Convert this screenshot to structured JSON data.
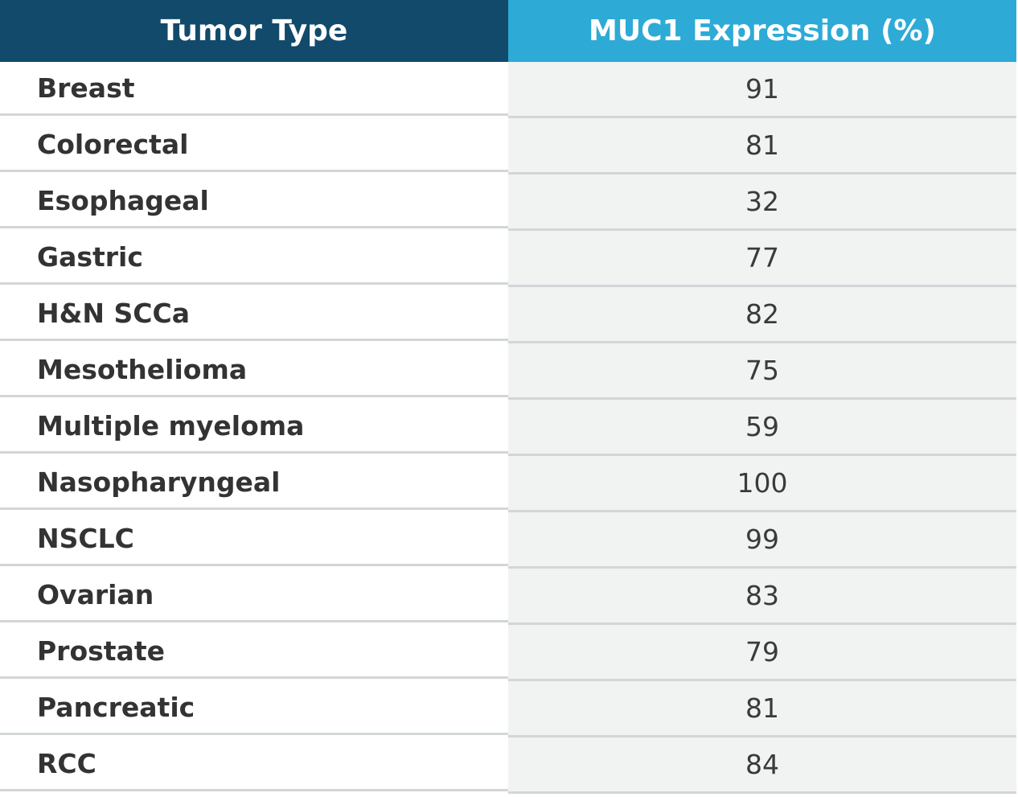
{
  "table": {
    "header": [
      "Tumor Type",
      "MUC1 Expression (%)"
    ],
    "rows": [
      [
        "Breast",
        91
      ],
      [
        "Colorectal",
        81
      ],
      [
        "Esophageal",
        32
      ],
      [
        "Gastric",
        77
      ],
      [
        "H&N SCCa",
        82
      ],
      [
        "Mesothelioma",
        75
      ],
      [
        "Multiple myeloma",
        59
      ],
      [
        "Nasopharyngeal",
        100
      ],
      [
        "NSCLC",
        99
      ],
      [
        "Ovarian",
        83
      ],
      [
        "Prostate",
        79
      ],
      [
        "Pancreatic",
        81
      ],
      [
        "RCC",
        84
      ]
    ]
  }
}
